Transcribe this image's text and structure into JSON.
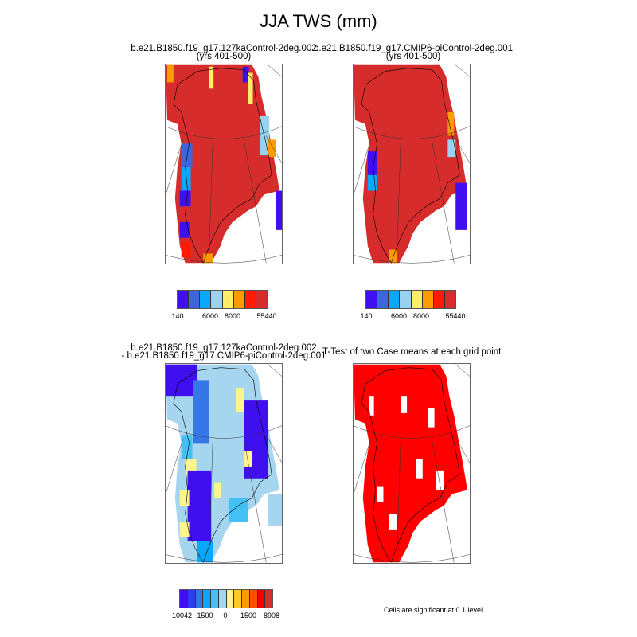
{
  "title": "JJA TWS (mm)",
  "panels": [
    {
      "title_line1": "b.e21.B1850.f19_g17.127kaControl-2deg.002",
      "title_line2": "(yrs 401-500)",
      "fill_color": "#d62c2c"
    },
    {
      "title_line1": "b.e21.B1850.f19_g17.CMIP6-piControl-2deg.001",
      "title_line2": "(yrs 401-500)",
      "fill_color": "#d62c2c"
    },
    {
      "title_line1": "b.e21.B1850.f19_g17.127kaControl-2deg.002",
      "title_line2": "- b.e21.B1850.f19_g17.CMIP6-piControl-2deg.001",
      "fill_color": "#a6d6ef"
    },
    {
      "title_line1": "T-Test of two Case means at each grid point",
      "fill_color": "#ff0000"
    }
  ],
  "colorbar_abs": {
    "colors": [
      "#3f0ff0",
      "#3d66dd",
      "#0aa8fc",
      "#9ad1ef",
      "#ffee66",
      "#ff9a00",
      "#ff1a00",
      "#d62c2c"
    ],
    "labels": [
      "140",
      "6000",
      "8000",
      "55440"
    ]
  },
  "colorbar_diff": {
    "colors": [
      "#3f0ff0",
      "#2a3ff0",
      "#3577e6",
      "#0aa8fc",
      "#45c0f5",
      "#a6d6ef",
      "#fff58a",
      "#ffcc22",
      "#ff9a00",
      "#ff5000",
      "#f00000",
      "#d62c2c"
    ],
    "labels": [
      "-10042",
      "-1500",
      "0",
      "1500",
      "8908"
    ]
  },
  "significance_note": "Cells are significant at 0.1 level"
}
